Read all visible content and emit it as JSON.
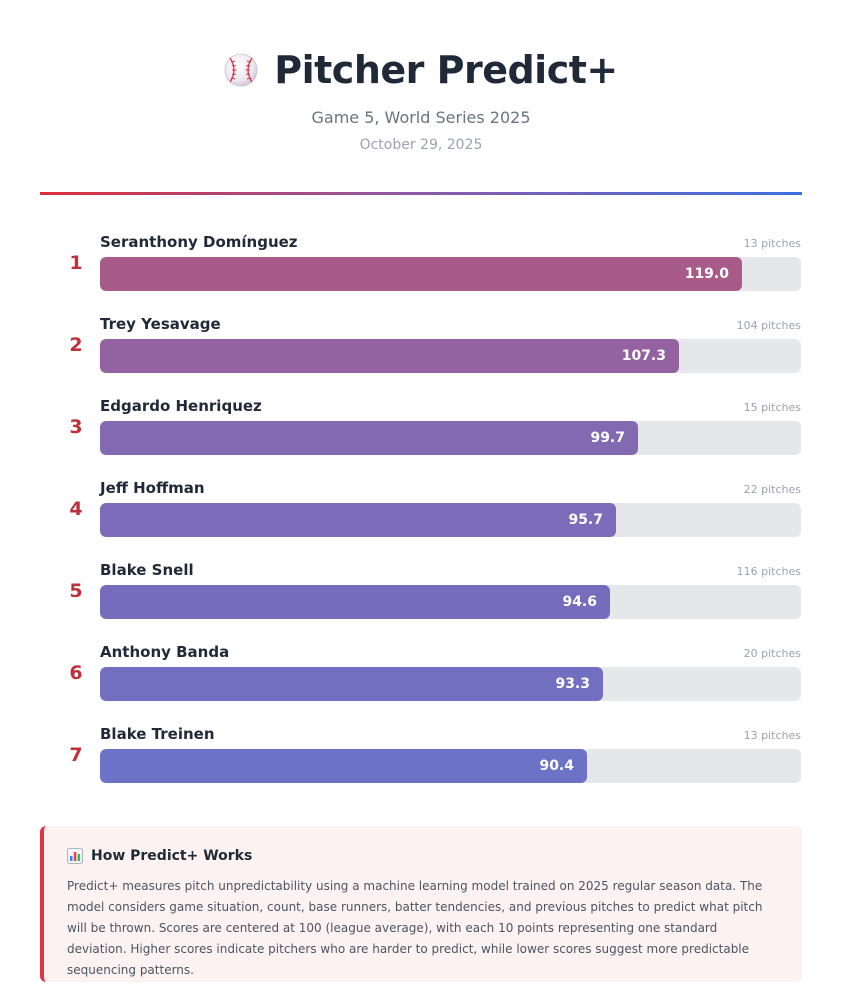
{
  "header": {
    "title": "Pitcher Predict+",
    "subtitle": "Game 5, World Series 2025",
    "date": "October 29, 2025"
  },
  "colors": {
    "accent_red": "#dc3545",
    "bar_start": "#a85a89",
    "bar_end": "#6e72c5",
    "track": "#e5e7eb"
  },
  "chart_data": {
    "type": "bar",
    "orientation": "horizontal",
    "title": "Pitcher Predict+",
    "xlim": [
      0,
      130
    ],
    "categories": [
      "Seranthony Domínguez",
      "Trey Yesavage",
      "Edgardo Henriquez",
      "Jeff Hoffman",
      "Blake Snell",
      "Anthony Banda",
      "Blake Treinen"
    ],
    "ranks": [
      "1",
      "2",
      "3",
      "4",
      "5",
      "6",
      "7"
    ],
    "values": [
      119.0,
      107.3,
      99.7,
      95.7,
      94.6,
      93.3,
      90.4
    ],
    "value_labels": [
      "119.0",
      "107.3",
      "99.7",
      "95.7",
      "94.6",
      "93.3",
      "90.4"
    ],
    "pitch_labels": [
      "13 pitches",
      "104 pitches",
      "15 pitches",
      "22 pitches",
      "116 pitches",
      "20 pitches",
      "13 pitches"
    ],
    "bar_colors": [
      "#a85a89",
      "#9462a0",
      "#8369b2",
      "#7b6bb8",
      "#776cbb",
      "#736fc0",
      "#6c72c6"
    ]
  },
  "info": {
    "icon": "bar-chart-icon",
    "title": "How Predict+ Works",
    "text": "Predict+ measures pitch unpredictability using a machine learning model trained on 2025 regular season data. The model considers game situation, count, base runners, batter tendencies, and previous pitches to predict what pitch will be thrown. Scores are centered at 100 (league average), with each 10 points representing one standard deviation. Higher scores indicate pitchers who are harder to predict, while lower scores suggest more predictable sequencing patterns."
  }
}
